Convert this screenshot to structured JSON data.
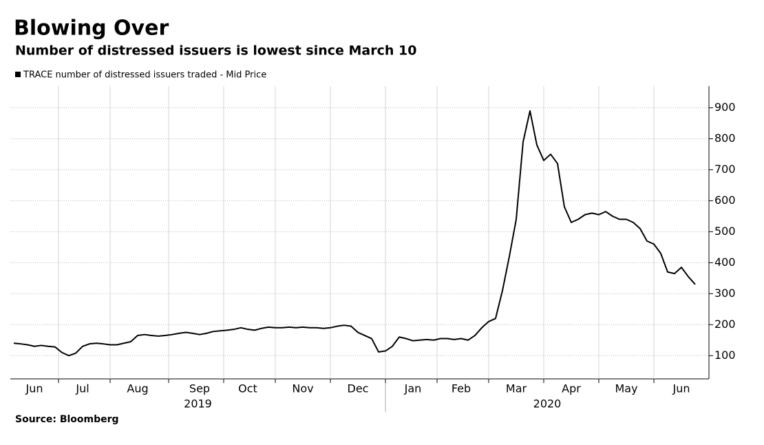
{
  "chart_data": {
    "type": "line",
    "title": "Blowing Over",
    "subtitle": "Number of distressed issuers is lowest since March 10",
    "source": "Source: Bloomberg",
    "years": [
      "2019",
      "2020"
    ],
    "categories": [
      null,
      null,
      null,
      "Jun",
      null,
      null,
      null,
      null,
      null,
      null,
      "Jul",
      null,
      null,
      null,
      null,
      null,
      null,
      null,
      "Aug",
      null,
      null,
      null,
      null,
      null,
      null,
      null,
      null,
      "Sep",
      null,
      null,
      null,
      null,
      null,
      null,
      "Oct",
      null,
      null,
      null,
      null,
      null,
      null,
      null,
      "Nov",
      null,
      null,
      null,
      null,
      null,
      null,
      null,
      "Dec",
      null,
      null,
      null,
      null,
      null,
      null,
      null,
      "Jan",
      null,
      null,
      null,
      null,
      null,
      null,
      "Feb",
      null,
      null,
      null,
      null,
      null,
      null,
      null,
      "Mar",
      null,
      null,
      null,
      null,
      null,
      null,
      null,
      "Apr",
      null,
      null,
      null,
      null,
      null,
      null,
      null,
      "May",
      null,
      null,
      null,
      null,
      null,
      null,
      null,
      "Jun",
      null,
      null
    ],
    "series": [
      {
        "name": "TRACE number of distressed issuers traded - Mid Price",
        "color": "#000000",
        "values": [
          140,
          138,
          135,
          130,
          133,
          130,
          128,
          110,
          100,
          108,
          130,
          138,
          140,
          138,
          135,
          135,
          140,
          145,
          165,
          168,
          165,
          163,
          165,
          168,
          172,
          175,
          172,
          168,
          172,
          178,
          180,
          182,
          185,
          190,
          185,
          182,
          188,
          192,
          190,
          190,
          192,
          190,
          192,
          190,
          190,
          188,
          190,
          195,
          198,
          195,
          175,
          165,
          155,
          112,
          115,
          130,
          160,
          155,
          148,
          150,
          152,
          150,
          155,
          155,
          152,
          155,
          150,
          165,
          190,
          210,
          220,
          310,
          420,
          540,
          790,
          890,
          780,
          730,
          750,
          720,
          580,
          530,
          540,
          555,
          560,
          555,
          565,
          550,
          540,
          540,
          530,
          510,
          470,
          460,
          430,
          370,
          365,
          385,
          355,
          330
        ]
      }
    ],
    "ylim": [
      25,
      970
    ],
    "yticks": [
      100,
      200,
      300,
      400,
      500,
      600,
      700,
      800,
      900
    ],
    "grid": true
  }
}
